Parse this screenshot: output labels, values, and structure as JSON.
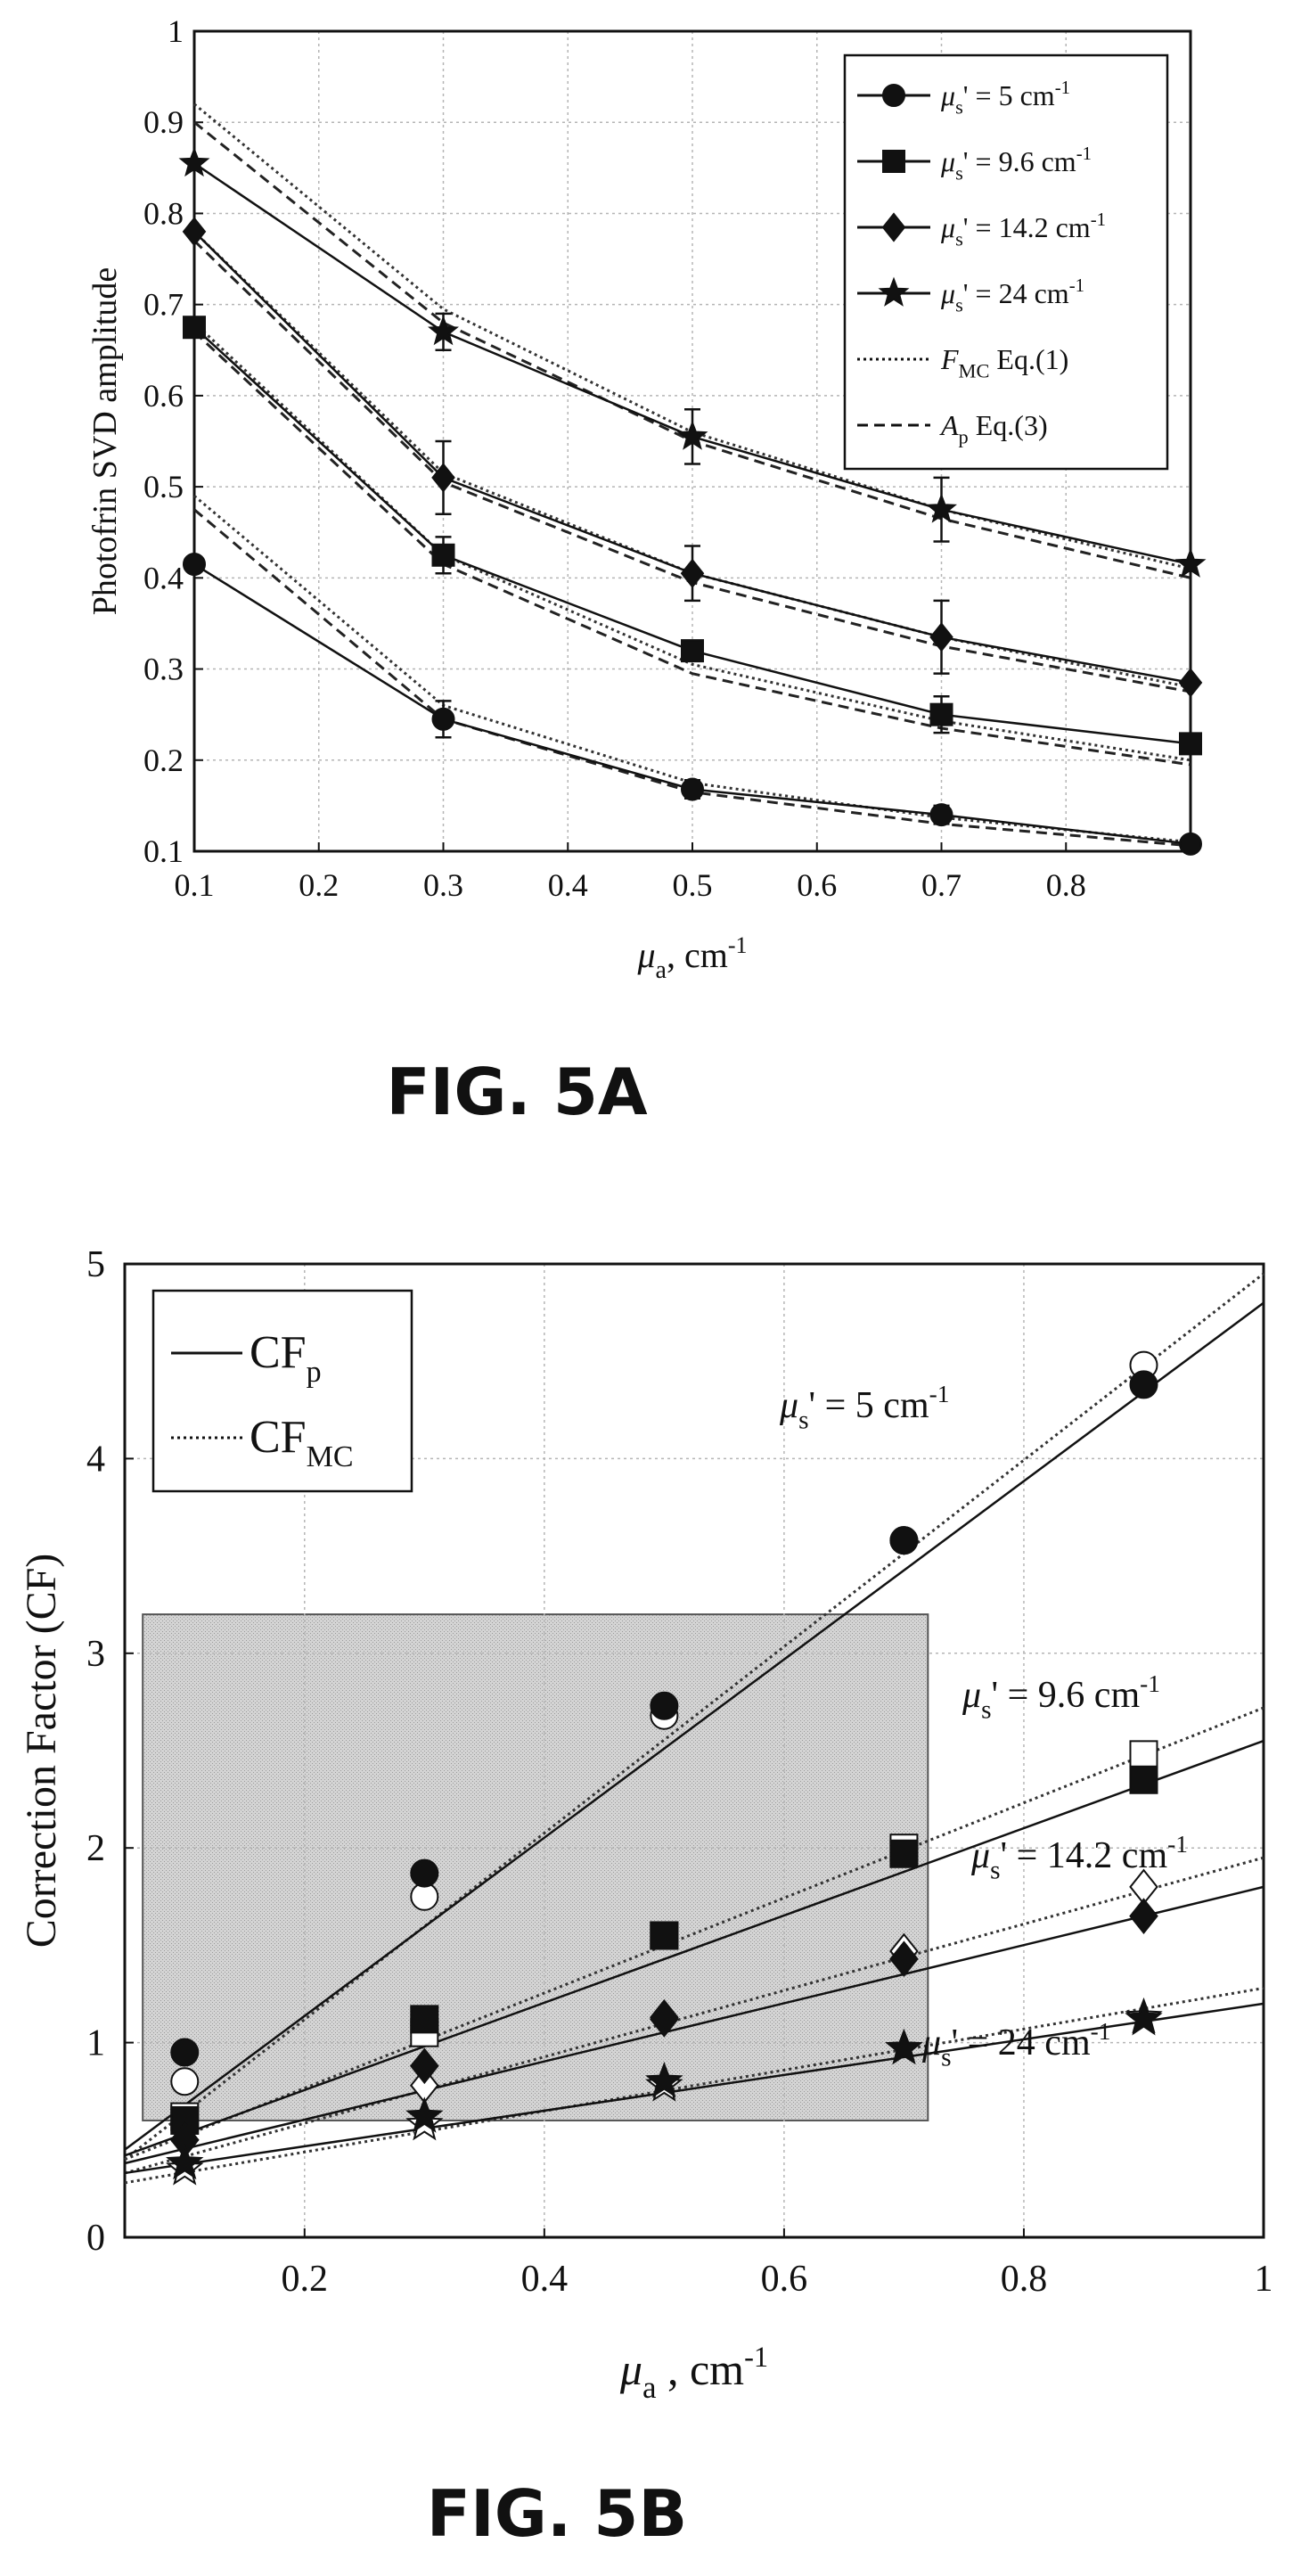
{
  "figures": [
    {
      "caption": "FIG. 5A",
      "ylabel": "Photofrin SVD amplitude",
      "xlabel_main": "μ",
      "xlabel_sub": "a",
      "xlabel_rest": ", cm",
      "xlabel_sup": "-1",
      "legend": [
        {
          "marker": "circle",
          "line": "solid",
          "main": "μ",
          "sub": "s",
          "rest": "' = 5 cm",
          "sup": "-1"
        },
        {
          "marker": "square",
          "line": "solid",
          "main": "μ",
          "sub": "s",
          "rest": "' = 9.6 cm",
          "sup": "-1"
        },
        {
          "marker": "diamond",
          "line": "solid",
          "main": "μ",
          "sub": "s",
          "rest": "' = 14.2 cm",
          "sup": "-1"
        },
        {
          "marker": "star",
          "line": "solid",
          "main": "μ",
          "sub": "s",
          "rest": "' = 24 cm",
          "sup": "-1"
        },
        {
          "marker": "none",
          "line": "dotted",
          "main": "F",
          "sub": "MC",
          "rest": " Eq.(1)",
          "sup": ""
        },
        {
          "marker": "none",
          "line": "dashed",
          "main": "A",
          "sub": "p",
          "rest": " Eq.(3)",
          "sup": ""
        }
      ]
    },
    {
      "caption": "FIG. 5B",
      "ylabel": "Correction Factor (CF)",
      "xlabel_main": "μ",
      "xlabel_sub": "a",
      "xlabel_rest": " , cm",
      "xlabel_sup": "-1",
      "legend": [
        {
          "line": "solid",
          "main": "CF",
          "sub": "p"
        },
        {
          "line": "dotted",
          "main": "CF",
          "sub": "MC"
        }
      ],
      "annotations": [
        {
          "main": "μ",
          "sub": "s",
          "rest": "' = 5 cm",
          "sup": "-1"
        },
        {
          "main": "μ",
          "sub": "s",
          "rest": "' = 9.6 cm",
          "sup": "-1"
        },
        {
          "main": "μ",
          "sub": "s",
          "rest": "' = 14.2 cm",
          "sup": "-1"
        },
        {
          "main": "μ",
          "sub": "s",
          "rest": "' = 24 cm",
          "sup": "-1"
        }
      ]
    }
  ],
  "chart_data": [
    {
      "type": "line",
      "xlim": [
        0.1,
        0.9
      ],
      "ylim": [
        0.1,
        1.0
      ],
      "xticks": [
        0.1,
        0.2,
        0.3,
        0.4,
        0.5,
        0.6,
        0.7,
        0.8
      ],
      "xtick_labels": [
        "0.1",
        "0.2",
        "0.3",
        "0.4",
        "0.5",
        "0.6",
        "0.7",
        "0.8"
      ],
      "yticks": [
        0.1,
        0.2,
        0.3,
        0.4,
        0.5,
        0.6,
        0.7,
        0.8,
        0.9,
        1.0
      ],
      "ytick_labels": [
        "0.1",
        "0.2",
        "0.3",
        "0.4",
        "0.5",
        "0.6",
        "0.7",
        "0.8",
        "0.9",
        "1"
      ],
      "grid": true,
      "legend_position": "top-right",
      "series": [
        {
          "marker": "circle",
          "x": [
            0.1,
            0.3,
            0.5,
            0.7,
            0.9
          ],
          "y": [
            0.415,
            0.245,
            0.168,
            0.14,
            0.108
          ],
          "err": [
            0,
            0.02,
            0.01,
            0.01,
            0
          ],
          "fmc": [
            0.49,
            0.26,
            0.175,
            0.137,
            0.11
          ],
          "ap": [
            0.475,
            0.245,
            0.165,
            0.13,
            0.106
          ]
        },
        {
          "marker": "square",
          "x": [
            0.1,
            0.3,
            0.5,
            0.7,
            0.9
          ],
          "y": [
            0.675,
            0.425,
            0.32,
            0.25,
            0.218
          ],
          "err": [
            0,
            0.02,
            0.01,
            0.02,
            0
          ],
          "fmc": [
            0.68,
            0.425,
            0.305,
            0.243,
            0.2
          ],
          "ap": [
            0.67,
            0.415,
            0.295,
            0.235,
            0.195
          ]
        },
        {
          "marker": "diamond",
          "x": [
            0.1,
            0.3,
            0.5,
            0.7,
            0.9
          ],
          "y": [
            0.78,
            0.51,
            0.405,
            0.335,
            0.285
          ],
          "err": [
            0,
            0.04,
            0.03,
            0.04,
            0
          ],
          "fmc": [
            0.78,
            0.515,
            0.405,
            0.335,
            0.28
          ],
          "ap": [
            0.77,
            0.505,
            0.395,
            0.325,
            0.275
          ]
        },
        {
          "marker": "star",
          "x": [
            0.1,
            0.3,
            0.5,
            0.7,
            0.9
          ],
          "y": [
            0.855,
            0.67,
            0.555,
            0.475,
            0.415
          ],
          "err": [
            0,
            0.02,
            0.03,
            0.035,
            0
          ],
          "fmc": [
            0.92,
            0.695,
            0.56,
            0.475,
            0.41
          ],
          "ap": [
            0.9,
            0.68,
            0.55,
            0.465,
            0.4
          ]
        }
      ]
    },
    {
      "type": "line",
      "xlim": [
        0.05,
        1.0
      ],
      "ylim": [
        0,
        5
      ],
      "xticks": [
        0.2,
        0.4,
        0.6,
        0.8,
        1.0
      ],
      "xtick_labels": [
        "0.2",
        "0.4",
        "0.6",
        "0.8",
        "1"
      ],
      "yticks": [
        0,
        1,
        2,
        3,
        4,
        5
      ],
      "ytick_labels": [
        "0",
        "1",
        "2",
        "3",
        "4",
        "5"
      ],
      "grid": true,
      "legend_position": "top-left",
      "highlight_region": {
        "x": [
          0.065,
          0.72
        ],
        "y": [
          0.6,
          3.2
        ]
      },
      "series": [
        {
          "cfp": {
            "x": [
              0.1,
              0.3,
              0.5,
              0.7,
              0.9
            ],
            "y": [
              0.95,
              1.87,
              2.73,
              3.58,
              4.38
            ]
          },
          "cfmc": {
            "x": [
              0.1,
              0.3,
              0.5,
              0.7,
              0.9
            ],
            "y": [
              0.8,
              1.75,
              2.68,
              3.58,
              4.48
            ]
          },
          "line_solid": [
            [
              0.05,
              0.45
            ],
            [
              1.0,
              4.8
            ]
          ],
          "line_dotted": [
            [
              0.05,
              0.4
            ],
            [
              1.0,
              4.95
            ]
          ]
        },
        {
          "cfp": {
            "x": [
              0.1,
              0.3,
              0.5,
              0.7,
              0.9
            ],
            "y": [
              0.6,
              1.12,
              1.55,
              1.97,
              2.35
            ]
          },
          "cfmc": {
            "x": [
              0.1,
              0.3,
              0.5,
              0.7,
              0.9
            ],
            "y": [
              0.62,
              1.05,
              1.55,
              2.0,
              2.48
            ]
          },
          "line_solid": [
            [
              0.05,
              0.42
            ],
            [
              1.0,
              2.55
            ]
          ],
          "line_dotted": [
            [
              0.05,
              0.4
            ],
            [
              1.0,
              2.72
            ]
          ]
        },
        {
          "cfp": {
            "x": [
              0.1,
              0.3,
              0.5,
              0.7,
              0.9
            ],
            "y": [
              0.5,
              0.88,
              1.13,
              1.43,
              1.65
            ]
          },
          "cfmc": {
            "x": [
              0.1,
              0.3,
              0.5,
              0.7,
              0.9
            ],
            "y": [
              0.5,
              0.78,
              1.12,
              1.47,
              1.8
            ]
          },
          "line_solid": [
            [
              0.05,
              0.38
            ],
            [
              1.0,
              1.8
            ]
          ],
          "line_dotted": [
            [
              0.05,
              0.33
            ],
            [
              1.0,
              1.95
            ]
          ]
        },
        {
          "cfp": {
            "x": [
              0.1,
              0.3,
              0.5,
              0.7,
              0.9
            ],
            "y": [
              0.38,
              0.62,
              0.8,
              0.97,
              1.12
            ]
          },
          "cfmc": {
            "x": [
              0.1,
              0.3,
              0.5,
              0.7,
              0.9
            ],
            "y": [
              0.35,
              0.58,
              0.78,
              0.97,
              1.13
            ]
          },
          "line_solid": [
            [
              0.05,
              0.33
            ],
            [
              1.0,
              1.2
            ]
          ],
          "line_dotted": [
            [
              0.05,
              0.28
            ],
            [
              1.0,
              1.28
            ]
          ]
        }
      ]
    }
  ]
}
